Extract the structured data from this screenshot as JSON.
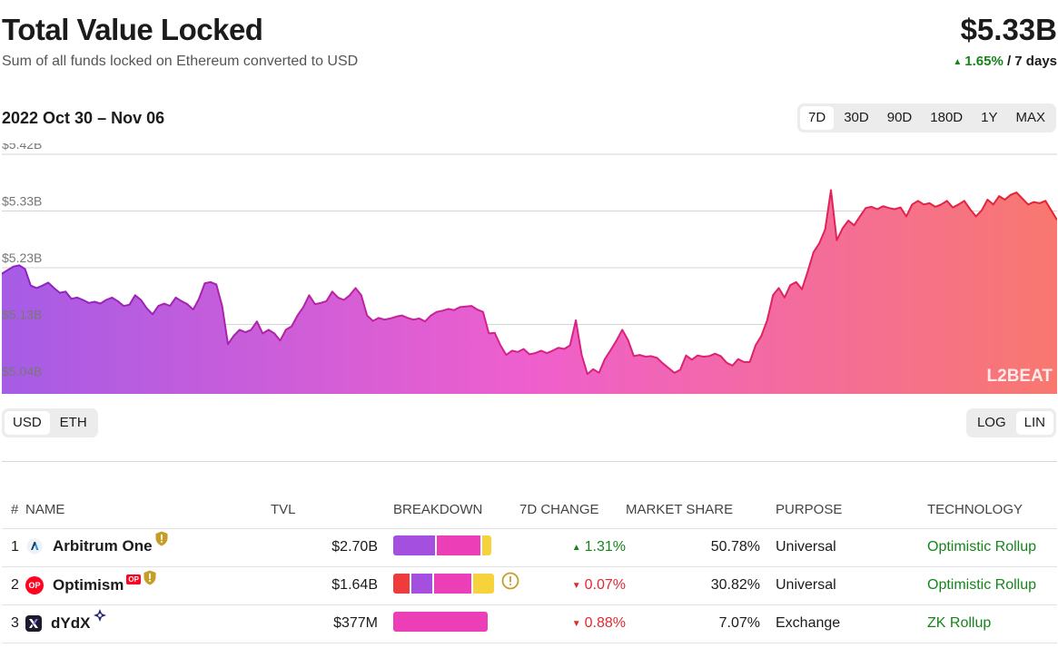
{
  "header": {
    "title": "Total Value Locked",
    "subtitle": "Sum of all funds locked on Ethereum converted to USD",
    "tvl_value": "$5.33B",
    "change_pct": "1.65%",
    "change_period": " / 7 days",
    "change_direction": "up"
  },
  "controls": {
    "date_range": "2022 Oct 30 – Nov 06",
    "range_options": [
      "7D",
      "30D",
      "90D",
      "180D",
      "1Y",
      "MAX"
    ],
    "range_selected": "7D",
    "unit_options": [
      "USD",
      "ETH"
    ],
    "unit_selected": "USD",
    "scale_options": [
      "LOG",
      "LIN"
    ],
    "scale_selected": "LIN"
  },
  "chart_data": {
    "type": "area",
    "title": "",
    "xlabel": "",
    "ylabel": "",
    "y_ticks": [
      "$5.42B",
      "$5.33B",
      "$5.23B",
      "$5.13B",
      "$5.04B"
    ],
    "ylim": [
      5.04,
      5.42
    ],
    "x_range": [
      "2022-10-30",
      "2022-11-06"
    ],
    "grid": true,
    "gradient_colors": [
      "#a65ce6",
      "#ef5fcd",
      "#f8786f"
    ],
    "line_colors": [
      "#8a23c4",
      "#d8218c",
      "#e8232e"
    ],
    "watermark": "L2BEAT",
    "series": [
      {
        "values": [
          5.22,
          5.226,
          5.232,
          5.234,
          5.228,
          5.2,
          5.196,
          5.2,
          5.205,
          5.196,
          5.188,
          5.19,
          5.178,
          5.18,
          5.176,
          5.171,
          5.173,
          5.17,
          5.176,
          5.18,
          5.174,
          5.166,
          5.168,
          5.184,
          5.176,
          5.162,
          5.152,
          5.166,
          5.17,
          5.166,
          5.18,
          5.174,
          5.169,
          5.16,
          5.178,
          5.204,
          5.206,
          5.202,
          5.166,
          5.102,
          5.116,
          5.126,
          5.122,
          5.126,
          5.14,
          5.12,
          5.126,
          5.12,
          5.108,
          5.126,
          5.132,
          5.15,
          5.164,
          5.184,
          5.169,
          5.171,
          5.174,
          5.19,
          5.18,
          5.176,
          5.184,
          5.196,
          5.184,
          5.15,
          5.141,
          5.146,
          5.143,
          5.145,
          5.148,
          5.15,
          5.146,
          5.143,
          5.145,
          5.14,
          5.15,
          5.156,
          5.158,
          5.161,
          5.159,
          5.164,
          5.165,
          5.166,
          5.16,
          5.156,
          5.12,
          5.121,
          5.1,
          5.084,
          5.091,
          5.089,
          5.094,
          5.085,
          5.087,
          5.091,
          5.087,
          5.091,
          5.096,
          5.094,
          5.1,
          5.142,
          5.084,
          5.052,
          5.06,
          5.054,
          5.077,
          5.092,
          5.108,
          5.126,
          5.109,
          5.082,
          5.084,
          5.081,
          5.082,
          5.079,
          5.07,
          5.062,
          5.054,
          5.059,
          5.083,
          5.076,
          5.083,
          5.081,
          5.082,
          5.086,
          5.082,
          5.071,
          5.066,
          5.077,
          5.072,
          5.072,
          5.1,
          5.116,
          5.142,
          5.184,
          5.196,
          5.18,
          5.201,
          5.206,
          5.194,
          5.224,
          5.256,
          5.271,
          5.294,
          5.36,
          5.276,
          5.296,
          5.309,
          5.301,
          5.316,
          5.33,
          5.332,
          5.328,
          5.333,
          5.33,
          5.328,
          5.331,
          5.316,
          5.336,
          5.342,
          5.336,
          5.338,
          5.332,
          5.336,
          5.342,
          5.331,
          5.336,
          5.342,
          5.328,
          5.316,
          5.326,
          5.344,
          5.336,
          5.35,
          5.344,
          5.352,
          5.356,
          5.346,
          5.336,
          5.34,
          5.338,
          5.342,
          5.326,
          5.31
        ]
      }
    ]
  },
  "table": {
    "columns": [
      "#",
      "NAME",
      "TVL",
      "BREAKDOWN",
      "7D CHANGE",
      "MARKET SHARE",
      "PURPOSE",
      "TECHNOLOGY"
    ],
    "rows": [
      {
        "index": "1",
        "name": "Arbitrum One",
        "tvl": "$2.70B",
        "change": "1.31%",
        "change_direction": "up",
        "market_share": "50.78%",
        "purpose": "Universal",
        "technology": "Optimistic Rollup",
        "logo": "arbitrum-logo",
        "badges": [
          "shield-warning-icon"
        ],
        "breakdown": [
          {
            "fraction": 0.44,
            "color": "#a54fe1"
          },
          {
            "fraction": 0.46,
            "color": "#ec3fb7"
          },
          {
            "fraction": 0.1,
            "color": "#f6d33b"
          }
        ],
        "breakdown_warning": false
      },
      {
        "index": "2",
        "name": "Optimism",
        "op_badge": "OP",
        "tvl": "$1.64B",
        "change": "0.07%",
        "change_direction": "down",
        "market_share": "30.82%",
        "purpose": "Universal",
        "technology": "Optimistic Rollup",
        "logo": "optimism-logo",
        "badges": [
          "op-token-badge",
          "shield-warning-icon"
        ],
        "breakdown": [
          {
            "fraction": 0.17,
            "color": "#ef3b3b"
          },
          {
            "fraction": 0.22,
            "color": "#a54fe1"
          },
          {
            "fraction": 0.39,
            "color": "#ec3fb7"
          },
          {
            "fraction": 0.22,
            "color": "#f6d33b"
          }
        ],
        "breakdown_warning": true
      },
      {
        "index": "3",
        "name": "dYdX",
        "tvl": "$377M",
        "change": "0.88%",
        "change_direction": "down",
        "market_share": "7.07%",
        "purpose": "Exchange",
        "technology": "ZK Rollup",
        "logo": "dydx-logo",
        "badges": [
          "starkex-icon"
        ],
        "breakdown": [
          {
            "fraction": 1.0,
            "color": "#ec3fb7"
          }
        ],
        "breakdown_warning": false
      }
    ]
  }
}
